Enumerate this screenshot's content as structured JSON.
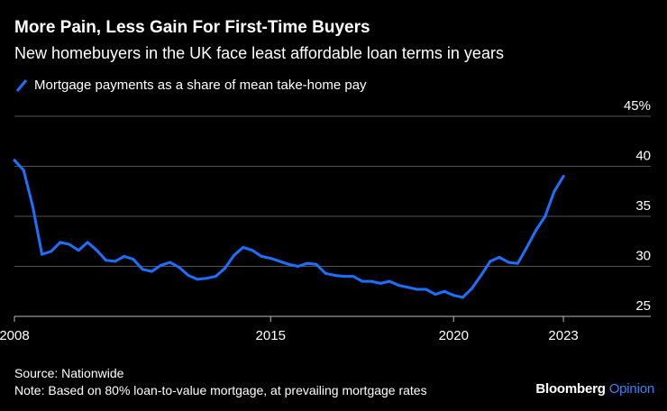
{
  "title": "More Pain, Less Gain For First-Time Buyers",
  "subtitle": "New homebuyers in the UK face least affordable loan terms in years",
  "legend_label": "Mortgage payments as a share of mean take-home pay",
  "source": "Source: Nationwide",
  "note": "Note: Based on 80% loan-to-value mortgage, at prevailing mortgage rates",
  "brand": {
    "main": "Bloomberg",
    "accent": "Opinion"
  },
  "colors": {
    "line": "#1f6fff",
    "grid": "#555555",
    "background": "#000000",
    "text": "#ffffff",
    "accent": "#3b82f6"
  },
  "chart_data": {
    "type": "line",
    "title": "More Pain, Less Gain For First-Time Buyers",
    "xlabel": "",
    "ylabel": "",
    "xlim": [
      2008,
      2024.5
    ],
    "ylim": [
      25,
      45
    ],
    "x_ticks": [
      {
        "value": 2008,
        "label": "2008"
      },
      {
        "value": 2015,
        "label": "2015"
      },
      {
        "value": 2020,
        "label": "2020"
      },
      {
        "value": 2023,
        "label": "2023"
      }
    ],
    "y_ticks": [
      {
        "value": 45,
        "label": "45%"
      },
      {
        "value": 40,
        "label": "40"
      },
      {
        "value": 35,
        "label": "35"
      },
      {
        "value": 30,
        "label": "30"
      },
      {
        "value": 25,
        "label": "25"
      }
    ],
    "series": [
      {
        "name": "Mortgage payments as a share of mean take-home pay",
        "x": [
          2008.0,
          2008.25,
          2008.5,
          2008.75,
          2009.0,
          2009.25,
          2009.5,
          2009.75,
          2010.0,
          2010.25,
          2010.5,
          2010.75,
          2011.0,
          2011.25,
          2011.5,
          2011.75,
          2012.0,
          2012.25,
          2012.5,
          2012.75,
          2013.0,
          2013.25,
          2013.5,
          2013.75,
          2014.0,
          2014.25,
          2014.5,
          2014.75,
          2015.0,
          2015.25,
          2015.5,
          2015.75,
          2016.0,
          2016.25,
          2016.5,
          2016.75,
          2017.0,
          2017.25,
          2017.5,
          2017.75,
          2018.0,
          2018.25,
          2018.5,
          2018.75,
          2019.0,
          2019.25,
          2019.5,
          2019.75,
          2020.0,
          2020.25,
          2020.5,
          2020.75,
          2021.0,
          2021.25,
          2021.5,
          2021.75,
          2022.0,
          2022.25,
          2022.5,
          2022.75,
          2023.0
        ],
        "values": [
          40.6,
          39.6,
          36.0,
          31.2,
          31.5,
          32.4,
          32.2,
          31.6,
          32.4,
          31.6,
          30.6,
          30.5,
          31.0,
          30.7,
          29.7,
          29.5,
          30.1,
          30.4,
          29.9,
          29.1,
          28.7,
          28.8,
          29.0,
          29.8,
          31.1,
          31.9,
          31.6,
          31.0,
          30.8,
          30.5,
          30.2,
          30.0,
          30.3,
          30.2,
          29.3,
          29.1,
          29.0,
          29.0,
          28.5,
          28.5,
          28.3,
          28.5,
          28.1,
          27.9,
          27.7,
          27.7,
          27.2,
          27.5,
          27.1,
          26.9,
          27.8,
          29.1,
          30.5,
          30.9,
          30.4,
          30.3,
          31.9,
          33.6,
          35.0,
          37.5,
          39.0
        ]
      }
    ]
  }
}
